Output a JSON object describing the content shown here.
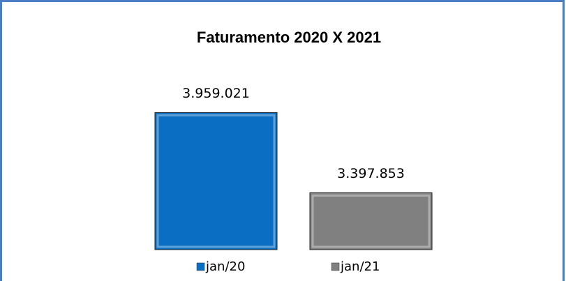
{
  "chart_data": {
    "type": "bar",
    "title": "Faturamento 2020 X 2021",
    "series": [
      {
        "name": "jan/20",
        "color": "#0a6fc2",
        "values": [
          3959021
        ],
        "value_labels": [
          "3.959.021"
        ]
      },
      {
        "name": "jan/21",
        "color": "#808080",
        "values": [
          3397853
        ],
        "value_labels": [
          "3.397.853"
        ]
      }
    ],
    "ylim": [
      3000000,
      4200000
    ]
  }
}
